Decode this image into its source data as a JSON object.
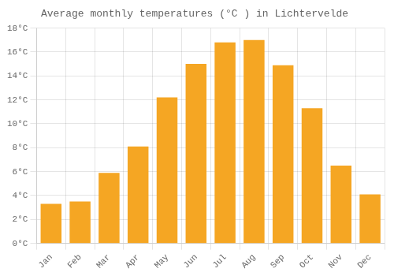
{
  "chart_data": {
    "type": "bar",
    "title": "Average monthly temperatures (°C ) in Lichtervelde",
    "categories": [
      "Jan",
      "Feb",
      "Mar",
      "Apr",
      "May",
      "Jun",
      "Jul",
      "Aug",
      "Sep",
      "Oct",
      "Nov",
      "Dec"
    ],
    "values": [
      3.3,
      3.5,
      5.9,
      8.1,
      12.2,
      15.0,
      16.8,
      17.0,
      14.9,
      11.3,
      6.5,
      4.1
    ],
    "color": "#F5A623",
    "ylim": [
      0,
      18
    ],
    "yticks": [
      {
        "value": 0,
        "label": "0°C"
      },
      {
        "value": 2,
        "label": "2°C"
      },
      {
        "value": 4,
        "label": "4°C"
      },
      {
        "value": 6,
        "label": "6°C"
      },
      {
        "value": 8,
        "label": "8°C"
      },
      {
        "value": 10,
        "label": "10°C"
      },
      {
        "value": 12,
        "label": "12°C"
      },
      {
        "value": 14,
        "label": "14°C"
      },
      {
        "value": 16,
        "label": "16°C"
      },
      {
        "value": 18,
        "label": "18°C"
      }
    ],
    "grid": true
  }
}
